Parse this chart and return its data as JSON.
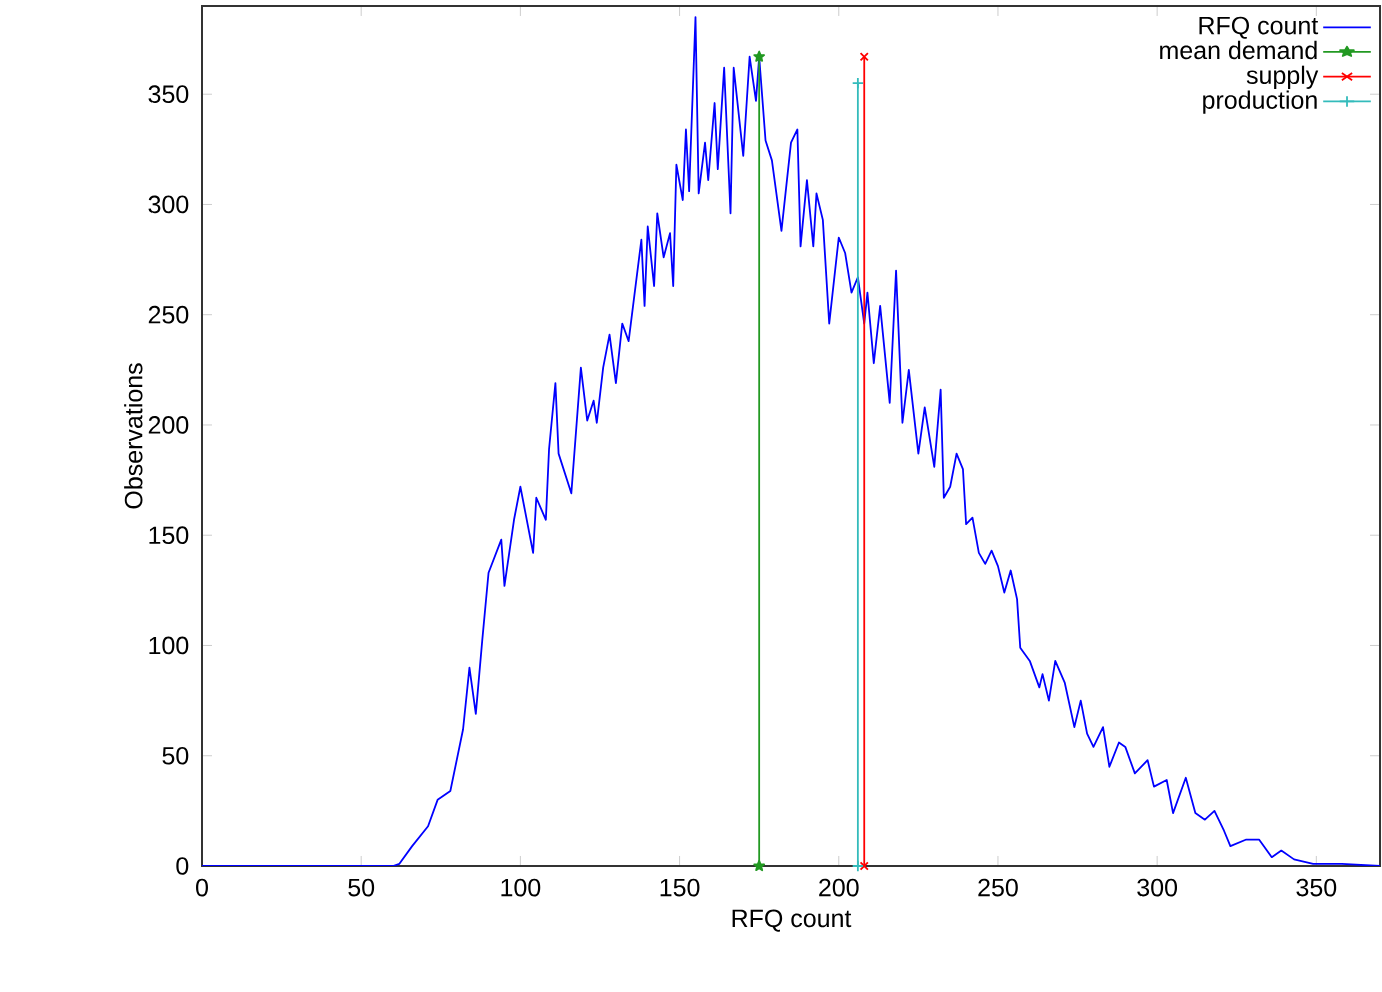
{
  "chart_data": {
    "type": "line",
    "xlabel": "RFQ count",
    "ylabel": "Observations",
    "xlim": [
      0,
      370
    ],
    "ylim": [
      0,
      390
    ],
    "xticks": [
      0,
      50,
      100,
      150,
      200,
      250,
      300,
      350
    ],
    "yticks": [
      0,
      50,
      100,
      150,
      200,
      250,
      300,
      350
    ],
    "grid": false,
    "legend": "top right",
    "line_style": "solid",
    "series": [
      {
        "name": "RFQ count",
        "color": "#0000ff",
        "marker": "none",
        "x": [
          0,
          50,
          60,
          62,
          66,
          71,
          74,
          78,
          82,
          84,
          86,
          88,
          90,
          94,
          95,
          98,
          100,
          104,
          105,
          108,
          109,
          111,
          112,
          116,
          119,
          121,
          123,
          124,
          126,
          128,
          130,
          132,
          134,
          138,
          139,
          140,
          142,
          143,
          145,
          147,
          148,
          149,
          151,
          152,
          153,
          155,
          156,
          158,
          159,
          161,
          162,
          164,
          166,
          167,
          170,
          172,
          174,
          175,
          177,
          179,
          182,
          185,
          187,
          188,
          190,
          192,
          193,
          195,
          197,
          200,
          202,
          204,
          206,
          208,
          209,
          211,
          213,
          216,
          218,
          220,
          222,
          225,
          227,
          230,
          232,
          233,
          235,
          237,
          239,
          240,
          242,
          244,
          246,
          248,
          250,
          252,
          254,
          256,
          257,
          260,
          263,
          264,
          266,
          268,
          271,
          274,
          276,
          278,
          280,
          283,
          285,
          288,
          290,
          293,
          297,
          299,
          303,
          305,
          309,
          312,
          315,
          318,
          321,
          323,
          328,
          332,
          336,
          339,
          343,
          349,
          358,
          370
        ],
        "values": [
          0,
          0,
          0,
          1,
          9,
          18,
          30,
          34,
          62,
          90,
          69,
          102,
          133,
          148,
          127,
          157,
          172,
          142,
          167,
          157,
          189,
          219,
          187,
          169,
          226,
          202,
          211,
          201,
          226,
          241,
          219,
          246,
          238,
          284,
          254,
          290,
          263,
          296,
          276,
          287,
          263,
          318,
          302,
          334,
          306,
          385,
          305,
          328,
          311,
          346,
          316,
          362,
          296,
          362,
          322,
          367,
          347,
          367,
          329,
          320,
          288,
          328,
          334,
          281,
          311,
          281,
          305,
          293,
          246,
          285,
          278,
          260,
          267,
          246,
          260,
          228,
          254,
          210,
          270,
          201,
          225,
          187,
          208,
          181,
          216,
          167,
          172,
          187,
          180,
          155,
          158,
          142,
          137,
          143,
          136,
          124,
          134,
          121,
          99,
          93,
          81,
          87,
          75,
          93,
          83,
          63,
          75,
          60,
          54,
          63,
          45,
          56,
          54,
          42,
          48,
          36,
          39,
          24,
          40,
          24,
          21,
          25,
          16,
          9,
          12,
          12,
          4,
          7,
          3,
          1,
          1,
          0
        ]
      },
      {
        "name": "mean demand",
        "color": "#229922",
        "marker": "star",
        "x": [
          175,
          175
        ],
        "values": [
          0,
          367
        ]
      },
      {
        "name": "supply",
        "color": "#ff0000",
        "marker": "cross",
        "x": [
          208,
          208
        ],
        "values": [
          0,
          367
        ]
      },
      {
        "name": "production",
        "color": "#33bbbb",
        "marker": "plus",
        "x": [
          206,
          206
        ],
        "values": [
          0,
          355
        ]
      }
    ]
  }
}
